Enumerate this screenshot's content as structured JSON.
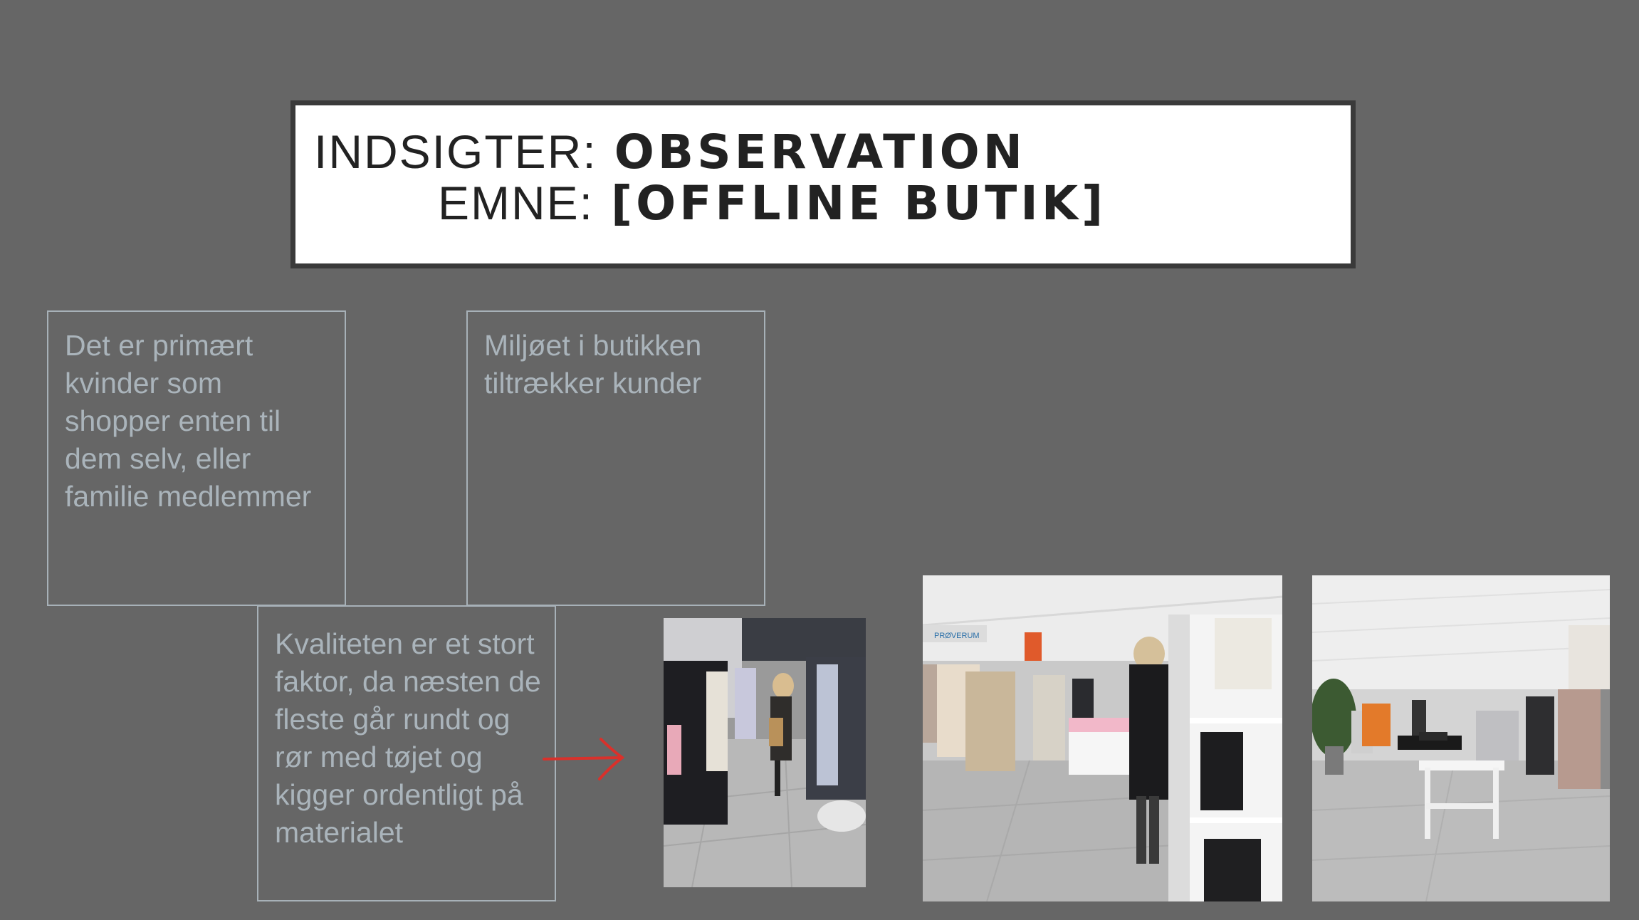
{
  "title": {
    "line1_label": "INDSIGTER:",
    "line1_value": "OBSERVATION",
    "line2_label": "EMNE:",
    "line2_value": "[OFFLINE BUTIK]"
  },
  "notes": [
    {
      "text": "Det er primært kvinder som shopper enten til dem selv, eller familie medlemmer"
    },
    {
      "text": "Miljøet i butikken tiltrækker kunder"
    },
    {
      "text": "Kvaliteten er et stort faktor, da næsten de fleste går rundt og rør med tøjet og kigger ordentligt på materialet"
    }
  ],
  "photos": {
    "store_sign": "PRØVERUM"
  },
  "colors": {
    "background": "#666666",
    "title_box": "#ffffff",
    "title_border": "#3a3a3a",
    "note_border": "#a7b1b8",
    "note_text": "#aab4bb",
    "arrow": "#d9312b"
  }
}
